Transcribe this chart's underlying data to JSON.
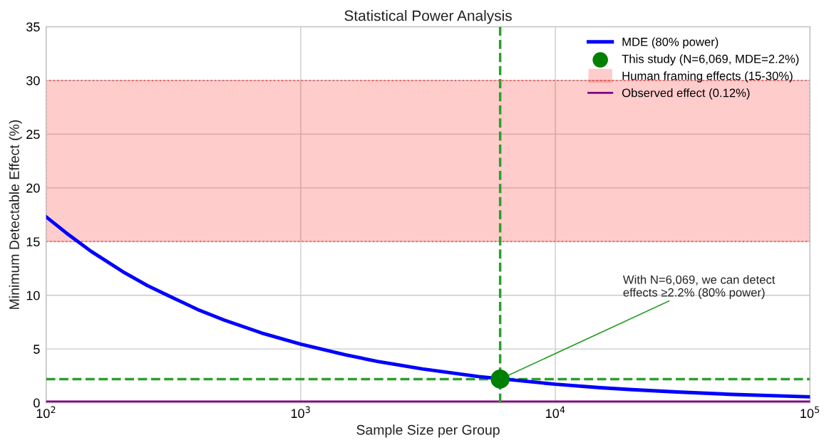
{
  "chart_data": {
    "type": "line",
    "title": "Statistical Power Analysis",
    "xlabel": "Sample Size per Group",
    "ylabel": "Minimum Detectable Effect (%)",
    "log": "x",
    "xlim": [
      100,
      100000
    ],
    "xticks": [
      {
        "value": 100,
        "label": "10$^{2}$"
      },
      {
        "value": 1000,
        "label": "10$^{3}$"
      },
      {
        "value": 10000,
        "label": "10$^{4}$"
      },
      {
        "value": 100000,
        "label": "10$^{5}$"
      }
    ],
    "ylim": [
      0,
      35
    ],
    "yticks": [
      0,
      5,
      10,
      15,
      20,
      25,
      30,
      35
    ],
    "grid": true,
    "legend": "top right",
    "series": [
      {
        "name": "MDE (80% power)",
        "type": "line",
        "color": "#0000ff",
        "x": [
          100,
          120,
          150,
          200,
          250,
          300,
          400,
          500,
          700,
          1000,
          1500,
          2000,
          3000,
          5000,
          10000,
          15000,
          20000,
          30000,
          50000,
          100000
        ],
        "values": [
          17.3,
          15.8,
          14.1,
          12.2,
          10.9,
          10,
          8.6,
          7.7,
          6.5,
          5.45,
          4.45,
          3.85,
          3.15,
          2.44,
          1.72,
          1.4,
          1.22,
          1.0,
          0.77,
          0.55
        ]
      },
      {
        "name": "This study (N=6,069, MDE=2.2%)",
        "type": "scatter",
        "color": "#008000",
        "marker": "circle",
        "x": [
          6069
        ],
        "values": [
          2.2
        ]
      }
    ],
    "bands": [
      {
        "axis": "y",
        "from": 15,
        "to": 30,
        "label": "Human framing effects (15-30%)",
        "color": "#ff0000"
      }
    ],
    "ref_lines": [
      {
        "axis": "y",
        "value": 0.12,
        "label": "Observed effect (0.12%)",
        "color": "#800080",
        "line_style": "solid"
      },
      {
        "axis": "x",
        "value": 6069,
        "color": "#2ca02c",
        "line_style": "dashed"
      },
      {
        "axis": "y",
        "value": 2.2,
        "color": "#2ca02c",
        "line_style": "dashed"
      }
    ],
    "annotations": [
      {
        "text": "With N=6,069, we can detect\neffects ≥2.2% (80% power)",
        "x": 6069,
        "y": 2.2
      }
    ]
  }
}
